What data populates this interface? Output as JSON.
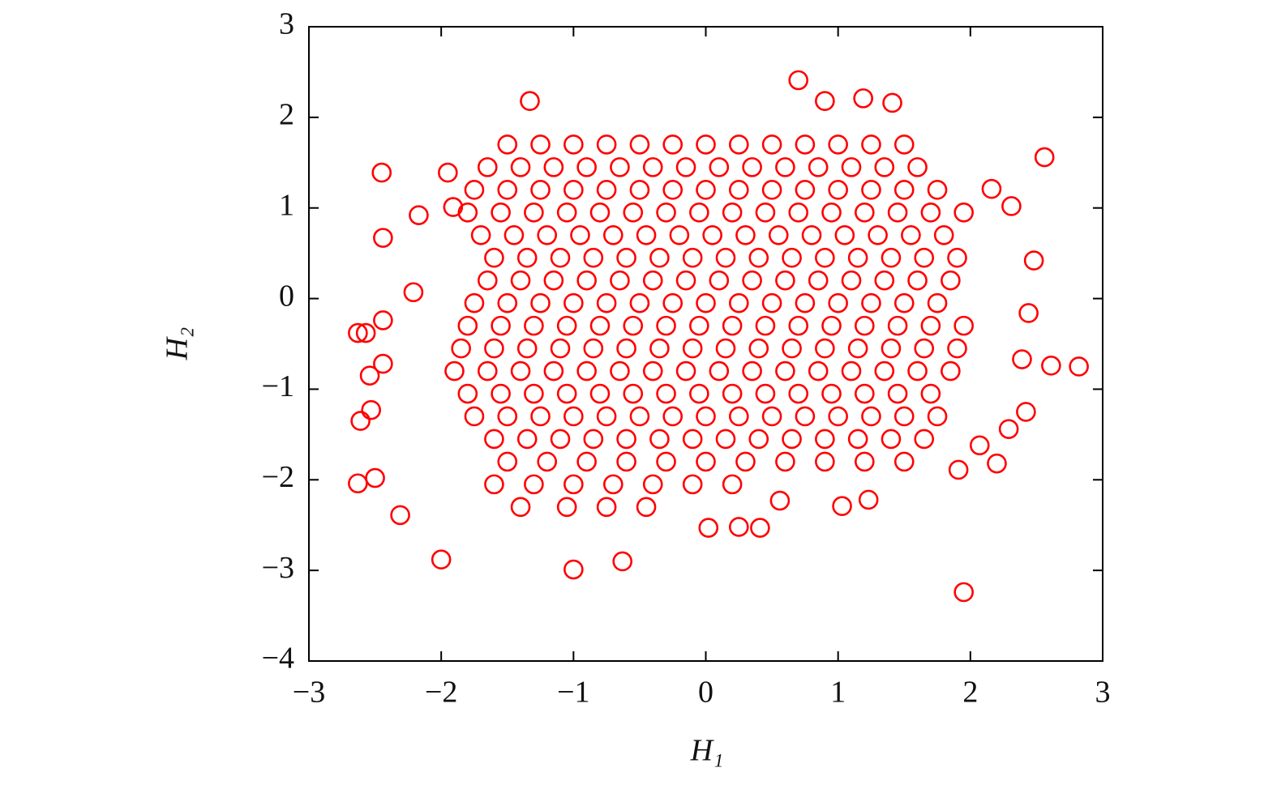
{
  "chart_data": {
    "type": "scatter",
    "xlabel": "H₁",
    "ylabel": "H₂",
    "color": "#ff0000",
    "xlim": [
      -3,
      3
    ],
    "ylim": [
      -4,
      3
    ],
    "xticks": [
      {
        "value": -3,
        "label": "−3"
      },
      {
        "value": -2,
        "label": "−2"
      },
      {
        "value": -1,
        "label": "−1"
      },
      0,
      1,
      2,
      3
    ],
    "yticks": [
      {
        "value": -4,
        "label": "−4"
      },
      {
        "value": -3,
        "label": "−3"
      },
      {
        "value": -2,
        "label": "−2"
      },
      {
        "value": -1,
        "label": "−1"
      },
      0,
      1,
      2,
      3
    ],
    "x": [
      -1.5,
      -1.25,
      -1,
      -0.75,
      -0.5,
      -0.25,
      0,
      0.25,
      0.5,
      0.75,
      1,
      1.25,
      1.5,
      -1.65,
      -1.4,
      -1.15,
      -0.9,
      -0.65,
      -0.4,
      -0.15,
      0.1,
      0.35,
      0.6,
      0.85,
      1.1,
      1.35,
      1.6,
      -1.75,
      -1.5,
      -1.25,
      -1,
      -0.75,
      -0.5,
      -0.25,
      0,
      0.25,
      0.5,
      0.75,
      1,
      1.25,
      1.5,
      1.75,
      -1.8,
      -1.55,
      -1.3,
      -1.05,
      -0.8,
      -0.55,
      -0.3,
      -0.05,
      0.2,
      0.45,
      0.7,
      0.95,
      1.2,
      1.45,
      1.7,
      1.95,
      -1.7,
      -1.45,
      -1.2,
      -0.95,
      -0.7,
      -0.45,
      -0.2,
      0.05,
      0.3,
      0.55,
      0.8,
      1.05,
      1.3,
      1.55,
      1.8,
      -1.6,
      -1.35,
      -1.1,
      -0.85,
      -0.6,
      -0.35,
      -0.1,
      0.15,
      0.4,
      0.65,
      0.9,
      1.15,
      1.4,
      1.65,
      1.9,
      -1.65,
      -1.4,
      -1.15,
      -0.9,
      -0.65,
      -0.4,
      -0.15,
      0.1,
      0.35,
      0.6,
      0.85,
      1.1,
      1.35,
      1.6,
      1.85,
      -1.75,
      -1.5,
      -1.25,
      -1,
      -0.75,
      -0.5,
      -0.25,
      0,
      0.25,
      0.5,
      0.75,
      1,
      1.25,
      1.5,
      1.75,
      -1.8,
      -1.55,
      -1.3,
      -1.05,
      -0.8,
      -0.55,
      -0.3,
      -0.05,
      0.2,
      0.45,
      0.7,
      0.95,
      1.2,
      1.45,
      1.7,
      1.95,
      -1.85,
      -1.6,
      -1.35,
      -1.1,
      -0.85,
      -0.6,
      -0.35,
      -0.1,
      0.15,
      0.4,
      0.65,
      0.9,
      1.15,
      1.4,
      1.65,
      1.9,
      -1.9,
      -1.65,
      -1.4,
      -1.15,
      -0.9,
      -0.65,
      -0.4,
      -0.15,
      0.1,
      0.35,
      0.6,
      0.85,
      1.1,
      1.35,
      1.6,
      1.85,
      -1.8,
      -1.55,
      -1.3,
      -1.05,
      -0.8,
      -0.55,
      -0.3,
      -0.05,
      0.2,
      0.45,
      0.7,
      0.95,
      1.2,
      1.45,
      1.7,
      -1.75,
      -1.5,
      -1.25,
      -1,
      -0.75,
      -0.5,
      -0.25,
      0,
      0.25,
      0.5,
      0.75,
      1,
      1.25,
      1.5,
      1.75,
      -1.6,
      -1.35,
      -1.1,
      -0.85,
      -0.6,
      -0.35,
      -0.1,
      0.15,
      0.4,
      0.65,
      0.9,
      1.15,
      1.4,
      1.65,
      -1.5,
      -1.2,
      -0.9,
      -0.6,
      -0.3,
      0,
      0.3,
      0.6,
      0.9,
      1.2,
      1.5,
      -1.6,
      -1.3,
      -1,
      -0.7,
      -0.4,
      -0.1,
      0.2,
      -1.4,
      -1.05,
      -0.75,
      -0.45,
      2.56,
      2.82,
      2.61,
      1.95,
      0.7,
      -1.33,
      1.41,
      0.9,
      1.19,
      -2.45,
      -2.44,
      -2.63,
      -2.57,
      -2.44,
      -2.44,
      -2.54,
      -2.61,
      -2.53,
      -2.63,
      -2.5,
      -2.31,
      -2,
      -1,
      -0.63,
      0.02,
      0.25,
      0.41,
      0.56,
      1.03,
      1.23,
      2.39,
      2.42,
      2.29,
      2.2,
      1.91,
      2.07,
      2.48,
      2.44,
      2.31,
      2.16,
      -2.17,
      -1.95,
      -1.91,
      -2.21
    ],
    "y": [
      1.7,
      1.7,
      1.7,
      1.7,
      1.7,
      1.7,
      1.7,
      1.7,
      1.7,
      1.7,
      1.7,
      1.7,
      1.7,
      1.45,
      1.45,
      1.45,
      1.45,
      1.45,
      1.45,
      1.45,
      1.45,
      1.45,
      1.45,
      1.45,
      1.45,
      1.45,
      1.45,
      1.2,
      1.2,
      1.2,
      1.2,
      1.2,
      1.2,
      1.2,
      1.2,
      1.2,
      1.2,
      1.2,
      1.2,
      1.2,
      1.2,
      1.2,
      0.95,
      0.95,
      0.95,
      0.95,
      0.95,
      0.95,
      0.95,
      0.95,
      0.95,
      0.95,
      0.95,
      0.95,
      0.95,
      0.95,
      0.95,
      0.95,
      0.7,
      0.7,
      0.7,
      0.7,
      0.7,
      0.7,
      0.7,
      0.7,
      0.7,
      0.7,
      0.7,
      0.7,
      0.7,
      0.7,
      0.7,
      0.45,
      0.45,
      0.45,
      0.45,
      0.45,
      0.45,
      0.45,
      0.45,
      0.45,
      0.45,
      0.45,
      0.45,
      0.45,
      0.45,
      0.45,
      0.2,
      0.2,
      0.2,
      0.2,
      0.2,
      0.2,
      0.2,
      0.2,
      0.2,
      0.2,
      0.2,
      0.2,
      0.2,
      0.2,
      0.2,
      -0.05,
      -0.05,
      -0.05,
      -0.05,
      -0.05,
      -0.05,
      -0.05,
      -0.05,
      -0.05,
      -0.05,
      -0.05,
      -0.05,
      -0.05,
      -0.05,
      -0.05,
      -0.3,
      -0.3,
      -0.3,
      -0.3,
      -0.3,
      -0.3,
      -0.3,
      -0.3,
      -0.3,
      -0.3,
      -0.3,
      -0.3,
      -0.3,
      -0.3,
      -0.3,
      -0.3,
      -0.55,
      -0.55,
      -0.55,
      -0.55,
      -0.55,
      -0.55,
      -0.55,
      -0.55,
      -0.55,
      -0.55,
      -0.55,
      -0.55,
      -0.55,
      -0.55,
      -0.55,
      -0.55,
      -0.8,
      -0.8,
      -0.8,
      -0.8,
      -0.8,
      -0.8,
      -0.8,
      -0.8,
      -0.8,
      -0.8,
      -0.8,
      -0.8,
      -0.8,
      -0.8,
      -0.8,
      -0.8,
      -1.05,
      -1.05,
      -1.05,
      -1.05,
      -1.05,
      -1.05,
      -1.05,
      -1.05,
      -1.05,
      -1.05,
      -1.05,
      -1.05,
      -1.05,
      -1.05,
      -1.05,
      -1.3,
      -1.3,
      -1.3,
      -1.3,
      -1.3,
      -1.3,
      -1.3,
      -1.3,
      -1.3,
      -1.3,
      -1.3,
      -1.3,
      -1.3,
      -1.3,
      -1.3,
      -1.55,
      -1.55,
      -1.55,
      -1.55,
      -1.55,
      -1.55,
      -1.55,
      -1.55,
      -1.55,
      -1.55,
      -1.55,
      -1.55,
      -1.55,
      -1.55,
      -1.8,
      -1.8,
      -1.8,
      -1.8,
      -1.8,
      -1.8,
      -1.8,
      -1.8,
      -1.8,
      -1.8,
      -1.8,
      -2.05,
      -2.05,
      -2.05,
      -2.05,
      -2.05,
      -2.05,
      -2.05,
      -2.3,
      -2.3,
      -2.3,
      -2.3,
      1.56,
      -0.75,
      -0.74,
      -3.24,
      2.41,
      2.18,
      2.16,
      2.18,
      2.21,
      1.39,
      0.67,
      -0.38,
      -0.38,
      -0.24,
      -0.72,
      -0.85,
      -1.35,
      -1.23,
      -2.04,
      -1.98,
      -2.39,
      -2.88,
      -2.99,
      -2.9,
      -2.53,
      -2.52,
      -2.53,
      -2.23,
      -2.29,
      -2.22,
      -0.67,
      -1.25,
      -1.44,
      -1.82,
      -1.89,
      -1.62,
      0.42,
      -0.16,
      1.02,
      1.21,
      0.92,
      1.39,
      1.01,
      0.07
    ]
  }
}
